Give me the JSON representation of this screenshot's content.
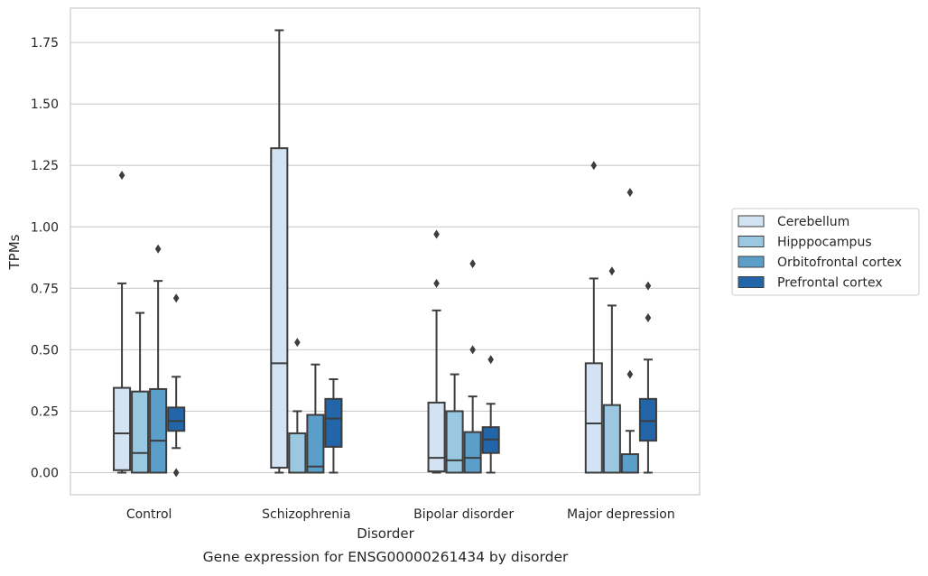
{
  "chart_data": {
    "type": "boxplot",
    "caption": "Gene expression for ENSG00000261434 by disorder",
    "xlabel": "Disorder",
    "ylabel": "TPMs",
    "ylim": [
      -0.09,
      1.89
    ],
    "yticks": [
      0.0,
      0.25,
      0.5,
      0.75,
      1.0,
      1.25,
      1.5,
      1.75
    ],
    "ytick_labels": [
      "0.00",
      "0.25",
      "0.50",
      "0.75",
      "1.00",
      "1.25",
      "1.50",
      "1.75"
    ],
    "grid": "horizontal",
    "legend_position": "right",
    "categories": [
      "Control",
      "Schizophrenia",
      "Bipolar disorder",
      "Major depression"
    ],
    "series": [
      {
        "name": "Cerebellum",
        "color": "#d4e3f3",
        "boxes": [
          {
            "whislo": 0.0,
            "q1": 0.01,
            "med": 0.16,
            "q3": 0.345,
            "whishi": 0.77,
            "fliers": [
              1.21
            ]
          },
          {
            "whislo": 0.0,
            "q1": 0.02,
            "med": 0.445,
            "q3": 1.32,
            "whishi": 1.8,
            "fliers": []
          },
          {
            "whislo": 0.0,
            "q1": 0.005,
            "med": 0.06,
            "q3": 0.285,
            "whishi": 0.66,
            "fliers": [
              0.77,
              0.97
            ]
          },
          {
            "whislo": 0.0,
            "q1": 0.0,
            "med": 0.2,
            "q3": 0.445,
            "whishi": 0.79,
            "fliers": [
              1.25
            ]
          }
        ]
      },
      {
        "name": "Hipppocampus",
        "color": "#9ac8e0",
        "boxes": [
          {
            "whislo": 0.0,
            "q1": 0.0,
            "med": 0.08,
            "q3": 0.33,
            "whishi": 0.65,
            "fliers": []
          },
          {
            "whislo": 0.0,
            "q1": 0.0,
            "med": 0.0,
            "q3": 0.16,
            "whishi": 0.25,
            "fliers": [
              0.53
            ]
          },
          {
            "whislo": 0.0,
            "q1": 0.0,
            "med": 0.05,
            "q3": 0.25,
            "whishi": 0.4,
            "fliers": []
          },
          {
            "whislo": 0.0,
            "q1": 0.0,
            "med": 0.0,
            "q3": 0.275,
            "whishi": 0.68,
            "fliers": [
              0.82
            ]
          }
        ]
      },
      {
        "name": "Orbitofrontal cortex",
        "color": "#5a9ec9",
        "boxes": [
          {
            "whislo": 0.0,
            "q1": 0.0,
            "med": 0.13,
            "q3": 0.34,
            "whishi": 0.78,
            "fliers": [
              0.91
            ]
          },
          {
            "whislo": 0.0,
            "q1": 0.0,
            "med": 0.025,
            "q3": 0.235,
            "whishi": 0.44,
            "fliers": []
          },
          {
            "whislo": 0.0,
            "q1": 0.0,
            "med": 0.06,
            "q3": 0.165,
            "whishi": 0.31,
            "fliers": [
              0.5,
              0.85
            ]
          },
          {
            "whislo": 0.0,
            "q1": 0.0,
            "med": 0.0,
            "q3": 0.075,
            "whishi": 0.17,
            "fliers": [
              0.4,
              1.14
            ]
          }
        ]
      },
      {
        "name": "Prefrontal cortex",
        "color": "#2265a8",
        "boxes": [
          {
            "whislo": 0.1,
            "q1": 0.17,
            "med": 0.21,
            "q3": 0.265,
            "whishi": 0.39,
            "fliers": [
              0.0,
              0.71
            ]
          },
          {
            "whislo": 0.0,
            "q1": 0.105,
            "med": 0.22,
            "q3": 0.3,
            "whishi": 0.38,
            "fliers": []
          },
          {
            "whislo": 0.0,
            "q1": 0.08,
            "med": 0.135,
            "q3": 0.185,
            "whishi": 0.28,
            "fliers": [
              0.46
            ]
          },
          {
            "whislo": 0.0,
            "q1": 0.13,
            "med": 0.21,
            "q3": 0.3,
            "whishi": 0.46,
            "fliers": [
              0.63,
              0.76
            ]
          }
        ]
      }
    ]
  }
}
